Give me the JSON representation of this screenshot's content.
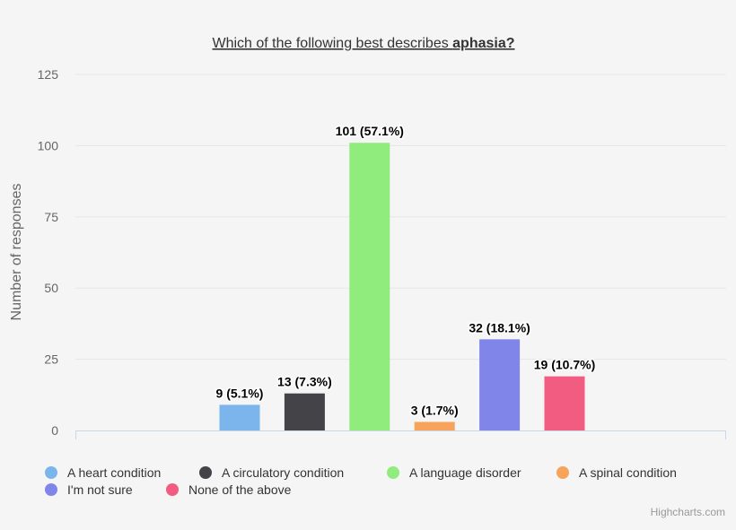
{
  "chart_data": {
    "type": "bar",
    "title_prefix": "Which of the following best describes ",
    "title_bold": "aphasia?",
    "ylabel": "Number of responses",
    "xlabel": "",
    "ylim": [
      0,
      125
    ],
    "yticks": [
      0,
      25,
      50,
      75,
      100,
      125
    ],
    "grid": true,
    "legend_position": "bottom",
    "series": [
      {
        "name": "A heart condition",
        "value": 9,
        "label": "9 (5.1%)",
        "color": "#7cb5ec"
      },
      {
        "name": "A circulatory condition",
        "value": 13,
        "label": "13 (7.3%)",
        "color": "#434348"
      },
      {
        "name": "A language disorder",
        "value": 101,
        "label": "101 (57.1%)",
        "color": "#90ed7d"
      },
      {
        "name": "A spinal condition",
        "value": 3,
        "label": "3 (1.7%)",
        "color": "#f7a35c"
      },
      {
        "name": "I'm not sure",
        "value": 32,
        "label": "32 (18.1%)",
        "color": "#8085e9"
      },
      {
        "name": "None of the above",
        "value": 19,
        "label": "19 (10.7%)",
        "color": "#f15c80"
      }
    ]
  },
  "credits": "Highcharts.com"
}
